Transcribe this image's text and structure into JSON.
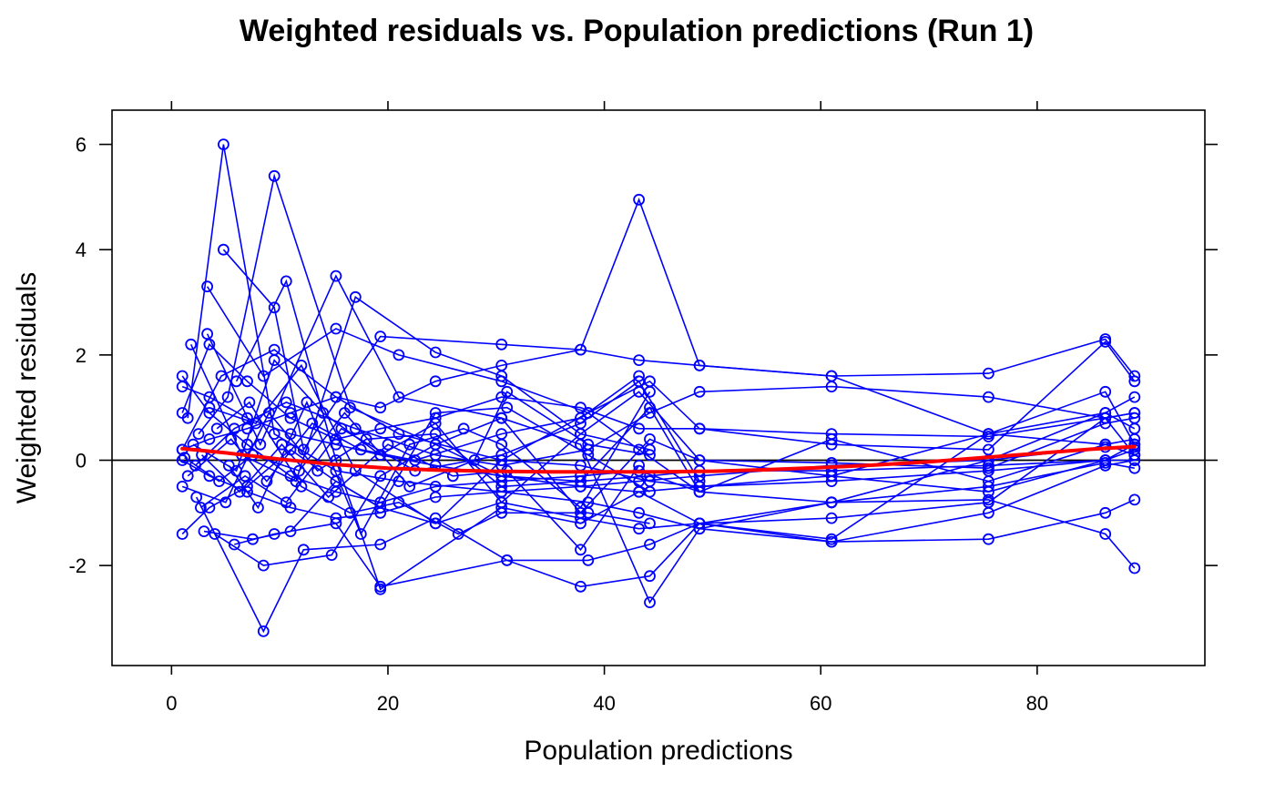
{
  "chart_data": {
    "type": "scatter",
    "title": "Weighted residuals vs. Population predictions (Run 1)",
    "xlabel": "Population predictions",
    "ylabel": "Weighted residuals",
    "xlim": [
      -5.5,
      95.5
    ],
    "ylim": [
      -3.9,
      6.65
    ],
    "x_ticks": [
      {
        "value": 0,
        "label": "0"
      },
      {
        "value": 20,
        "label": "20"
      },
      {
        "value": 40,
        "label": "40"
      },
      {
        "value": 60,
        "label": "60"
      },
      {
        "value": 80,
        "label": "80"
      }
    ],
    "y_ticks": [
      {
        "value": -2,
        "label": "-2"
      },
      {
        "value": 0,
        "label": "0"
      },
      {
        "value": 2,
        "label": "2"
      },
      {
        "value": 4,
        "label": "4"
      },
      {
        "value": 6,
        "label": "6"
      }
    ],
    "grid": false,
    "reference_line": {
      "y": 0,
      "color": "#000000"
    },
    "series": [
      {
        "type": "line-scatter",
        "color": "#0000FF",
        "x": [
          1,
          3.5,
          7,
          11,
          15.2,
          19.3,
          24.4,
          30.5,
          37.8,
          43.2,
          48.8,
          61,
          75.5,
          86.3,
          89
        ],
        "y": [
          1.4,
          1.2,
          0.8,
          0.5,
          0.3,
          0.1,
          -0.1,
          -0.3,
          -0.5,
          -0.6,
          -0.5,
          -0.4,
          -0.2,
          0,
          0.2
        ]
      },
      {
        "type": "line-scatter",
        "color": "#0000FF",
        "x": [
          1,
          3.5,
          7,
          11,
          15.2,
          19.3,
          24.4,
          30.5,
          37.8,
          43.2,
          48.8,
          61,
          75.5,
          86.3,
          89
        ],
        "y": [
          -1.4,
          -0.9,
          -0.5,
          0.2,
          -0.4,
          -0.9,
          -1.2,
          -0.8,
          -1.1,
          -1.3,
          -1.2,
          -1.55,
          -1.5,
          -1.0,
          -0.75
        ]
      },
      {
        "type": "line-scatter",
        "color": "#0000FF",
        "x": [
          1,
          3.5,
          7,
          11,
          15.2,
          19.3,
          24.4,
          30.5,
          37.8,
          43.2,
          48.8,
          61,
          75.5,
          86.3,
          89
        ],
        "y": [
          0.2,
          0.4,
          0.6,
          0.9,
          1.2,
          1.0,
          1.5,
          1.8,
          2.1,
          1.9,
          1.8,
          1.6,
          1.65,
          2.3,
          1.6
        ]
      },
      {
        "type": "line-scatter",
        "color": "#0000FF",
        "x": [
          1,
          3.5,
          7,
          11,
          15.2,
          19.3,
          24.4,
          30.5,
          37.8,
          43.2,
          48.8,
          61,
          75.5,
          86.3,
          89
        ],
        "y": [
          1.6,
          0.9,
          0.3,
          -0.3,
          -0.6,
          -0.8,
          -0.5,
          -0.4,
          -0.3,
          -0.2,
          -0.6,
          -0.8,
          -0.75,
          -1.4,
          -2.05
        ]
      },
      {
        "type": "line-scatter",
        "color": "#0000FF",
        "x": [
          1,
          3.5,
          7,
          11,
          15.2,
          19.3,
          24.4,
          30.5,
          37.8,
          43.2,
          48.8,
          61,
          75.5,
          86.3,
          89
        ],
        "y": [
          0.0,
          -0.3,
          -0.6,
          -0.9,
          -1.1,
          -1.0,
          -0.7,
          -0.6,
          -0.5,
          -0.4,
          -0.3,
          -0.1,
          0.0,
          0.25,
          0.25
        ]
      },
      {
        "type": "line-scatter",
        "color": "#0000FF",
        "x": [
          1,
          3.5,
          7,
          11,
          15.2,
          19.3,
          24.4,
          30.5,
          37.8,
          43.2,
          48.8,
          61,
          75.5,
          86.3,
          89
        ],
        "y": [
          0.9,
          2.2,
          1.5,
          0.8,
          0.4,
          0.6,
          0.8,
          1.2,
          1.0,
          0.6,
          0.6,
          0.5,
          0.45,
          0.8,
          0.9
        ]
      },
      {
        "type": "line-scatter",
        "color": "#0000FF",
        "x": [
          1,
          4.6,
          9.5,
          15.2,
          21,
          30.5,
          37.8,
          44.2,
          48.8,
          61,
          75.5,
          86.3,
          89
        ],
        "y": [
          0.2,
          1.6,
          2.1,
          1.2,
          0.5,
          0.0,
          -0.1,
          -0.4,
          -0.5,
          -0.3,
          0.5,
          0.9,
          1.2
        ]
      },
      {
        "type": "line-scatter",
        "color": "#0000FF",
        "x": [
          2.2,
          5.8,
          10.6,
          17,
          24.4,
          30.5,
          38.5,
          44.2,
          48.8,
          61,
          75.5,
          86.3,
          89
        ],
        "y": [
          -0.1,
          0.6,
          1.1,
          0.6,
          0.1,
          -0.1,
          0.2,
          0.9,
          1.3,
          1.4,
          1.2,
          0.8,
          0.1
        ]
      },
      {
        "type": "line-scatter",
        "color": "#0000FF",
        "x": [
          1.5,
          4.8,
          9.5,
          15.2,
          21,
          30.5,
          38.5,
          43.2,
          48.8,
          61,
          75.5,
          86.3,
          89
        ],
        "y": [
          0.8,
          6.0,
          0.5,
          -0.2,
          -0.4,
          -0.6,
          -0.8,
          -1.0,
          -1.3,
          -1.55,
          -1.0,
          -0.1,
          0.0
        ]
      },
      {
        "type": "line-scatter",
        "color": "#0000FF",
        "x": [
          2.5,
          5.2,
          9.5,
          16.5,
          24.4,
          30.5,
          37.8,
          44.2,
          48.8,
          61,
          75.5,
          86.3,
          89
        ],
        "y": [
          0.5,
          1.2,
          5.4,
          1.0,
          0.3,
          -0.3,
          -0.4,
          -0.3,
          -0.2,
          -0.2,
          -0.1,
          0.0,
          0.0
        ]
      },
      {
        "type": "line-scatter",
        "color": "#0000FF",
        "x": [
          3.3,
          8.5,
          15.2,
          21,
          30.5,
          38.5,
          44.2,
          48.8,
          61,
          75.5,
          86.3,
          89
        ],
        "y": [
          3.3,
          1.6,
          2.5,
          2.0,
          1.5,
          0.9,
          1.5,
          0.6,
          0.3,
          0.2,
          2.25,
          1.5
        ]
      },
      {
        "type": "line-scatter",
        "color": "#0000FF",
        "x": [
          1.8,
          6.5,
          11.5,
          17,
          24.4,
          30.5,
          37.8,
          43.2,
          48.8,
          61,
          75.5,
          86.3,
          89
        ],
        "y": [
          2.2,
          0.1,
          -0.4,
          3.1,
          2.05,
          1.6,
          0.5,
          1.3,
          0.0,
          -0.05,
          -0.15,
          0.7,
          0.8
        ]
      },
      {
        "type": "line-scatter",
        "color": "#0000FF",
        "x": [
          4.8,
          9.5,
          12.2,
          19.3,
          30.5,
          37.8,
          43.2,
          48.8,
          61,
          75.5,
          86.3,
          89
        ],
        "y": [
          4.0,
          2.9,
          0.2,
          2.35,
          2.2,
          2.1,
          4.95,
          1.8,
          1.6,
          0.5,
          0.3,
          0.1
        ]
      },
      {
        "type": "line-scatter",
        "color": "#0000FF",
        "x": [
          6,
          10.6,
          15.2,
          19.3,
          30.5,
          37.8,
          43.2,
          48.8,
          61,
          75.5,
          86.3,
          89
        ],
        "y": [
          1.5,
          3.4,
          0.0,
          -2.45,
          -0.9,
          -1.2,
          -0.6,
          -1.2,
          -1.1,
          -0.8,
          0.8,
          0.9
        ]
      },
      {
        "type": "line-scatter",
        "color": "#0000FF",
        "x": [
          3.3,
          8.2,
          15.2,
          21,
          30.5,
          37.8,
          44.2,
          48.8,
          61,
          75.5,
          86.3,
          89
        ],
        "y": [
          2.4,
          0.3,
          3.5,
          1.2,
          0.8,
          0.3,
          -2.7,
          -1.3,
          -0.8,
          0.0,
          0.9,
          0.6
        ]
      },
      {
        "type": "line-scatter",
        "color": "#0000FF",
        "x": [
          5.8,
          9.5,
          15.2,
          19.3,
          31,
          37.8,
          44.2,
          48.8,
          61,
          75.5,
          86.3,
          89
        ],
        "y": [
          -1.6,
          -1.4,
          -1.2,
          -2.4,
          -1.9,
          -2.4,
          -2.2,
          -1.2,
          -1.5,
          0.5,
          1.3,
          0.3
        ]
      },
      {
        "type": "line-scatter",
        "color": "#0000FF",
        "x": [
          2.3,
          8.5,
          12.2,
          19.3,
          24.4,
          31,
          38.5,
          44.2,
          48.8,
          61,
          75.5,
          86.3,
          89
        ],
        "y": [
          -0.7,
          -3.25,
          -1.7,
          -1.6,
          -1.1,
          -1.9,
          -1.9,
          -1.6,
          -1.2,
          -0.8,
          -0.5,
          -0.05,
          -0.15
        ]
      },
      {
        "type": "line-scatter",
        "color": "#0000FF",
        "x": [
          4,
          8.5,
          14.8,
          19.3,
          24.4,
          30.5,
          37.8,
          44.2,
          48.8,
          61,
          75.5,
          86.3,
          89
        ],
        "y": [
          -1.4,
          -2.0,
          -1.8,
          -0.3,
          0.3,
          0.8,
          -1.0,
          0.4,
          0.0,
          -0.3,
          -0.6,
          0.0,
          0.3
        ]
      },
      {
        "type": "line-scatter",
        "color": "#0000FF",
        "x": [
          1,
          5,
          9,
          13.5,
          18,
          24.4,
          30.5,
          37.8,
          44.2,
          48.8,
          61,
          75.5,
          86.3,
          89
        ],
        "y": [
          -0.5,
          -0.8,
          0.9,
          -0.2,
          0.4,
          0.5,
          -0.5,
          -0.4,
          1.0,
          -0.6,
          0.4,
          -0.4,
          0.3,
          0.4
        ]
      },
      {
        "type": "line-scatter",
        "color": "#0000FF",
        "x": [
          2.7,
          6.8,
          10.6,
          15.7,
          22.5,
          30.5,
          37.8,
          43.2,
          48.8
        ],
        "y": [
          -0.9,
          -0.3,
          -0.8,
          0.6,
          -0.2,
          0.1,
          0.7,
          1.5,
          -0.4
        ]
      },
      {
        "type": "line-scatter",
        "color": "#0000FF",
        "x": [
          3.5,
          7.8,
          12,
          17,
          24.4,
          30.5,
          38.5,
          43.2,
          48.8
        ],
        "y": [
          1.0,
          0.7,
          1.8,
          -0.2,
          -1.2,
          0.0,
          0.9,
          0.2,
          -0.6
        ]
      },
      {
        "type": "line-scatter",
        "color": "#0000FF",
        "x": [
          2,
          6,
          9.5,
          14,
          19.3,
          24.4,
          30.5,
          37.8,
          44.2
        ],
        "y": [
          0.3,
          -0.2,
          1.9,
          0.9,
          0.1,
          0.7,
          -0.8,
          0.5,
          0.2
        ]
      },
      {
        "type": "line-scatter",
        "color": "#0000FF",
        "x": [
          4.2,
          7.2,
          12,
          16.5,
          21,
          26.5,
          30.5,
          38.5,
          44.2
        ],
        "y": [
          0.6,
          1.1,
          -0.5,
          -1.0,
          -0.8,
          -1.4,
          -1.0,
          -1.0,
          -1.2
        ]
      },
      {
        "type": "line-scatter",
        "color": "#0000FF",
        "x": [
          1.5,
          5.5,
          8.8,
          13,
          17.5,
          22.5,
          30.5,
          37.8,
          43.2
        ],
        "y": [
          -0.3,
          0.4,
          -0.4,
          0.7,
          0.2,
          0.0,
          0.5,
          0.8,
          1.6
        ]
      },
      {
        "type": "line-scatter",
        "color": "#0000FF",
        "x": [
          3,
          7.5,
          11,
          15.2,
          19.3,
          24.4,
          31,
          38.5,
          44.2
        ],
        "y": [
          -1.35,
          -1.5,
          -1.35,
          -0.4,
          -0.9,
          0.9,
          1.0,
          0.1,
          -0.6
        ]
      },
      {
        "type": "line-scatter",
        "color": "#0000FF",
        "x": [
          2.8,
          6.3,
          10.2,
          14.5,
          20,
          26,
          31,
          37.8,
          43.2
        ],
        "y": [
          0.1,
          -0.6,
          0.3,
          -0.7,
          0.3,
          -0.3,
          -0.2,
          -1.7,
          -0.1
        ]
      },
      {
        "type": "line-scatter",
        "color": "#0000FF",
        "x": [
          5.3,
          8,
          12.5,
          17.5,
          22,
          27,
          30.5,
          37.8,
          44.2
        ],
        "y": [
          -0.1,
          -0.9,
          1.1,
          -1.4,
          0.3,
          0.6,
          0.3,
          -0.9,
          1.3
        ]
      },
      {
        "type": "line-scatter",
        "color": "#0000FF",
        "x": [
          1.2,
          4.4,
          7.5,
          11.8,
          16,
          22,
          28,
          31,
          38.5,
          44.2
        ],
        "y": [
          0.05,
          -0.4,
          0.1,
          -0.2,
          0.9,
          -0.5,
          0.0,
          1.3,
          0.3,
          0.1
        ]
      }
    ],
    "smooth": {
      "color": "#FF0000",
      "x": [
        1,
        5,
        10,
        15,
        20,
        25,
        30,
        35,
        40,
        45,
        50,
        55,
        60,
        65,
        70,
        75,
        80,
        85,
        89
      ],
      "y": [
        0.22,
        0.14,
        0.02,
        -0.08,
        -0.15,
        -0.19,
        -0.21,
        -0.22,
        -0.22,
        -0.22,
        -0.21,
        -0.18,
        -0.14,
        -0.09,
        -0.03,
        0.05,
        0.13,
        0.21,
        0.26
      ]
    }
  }
}
